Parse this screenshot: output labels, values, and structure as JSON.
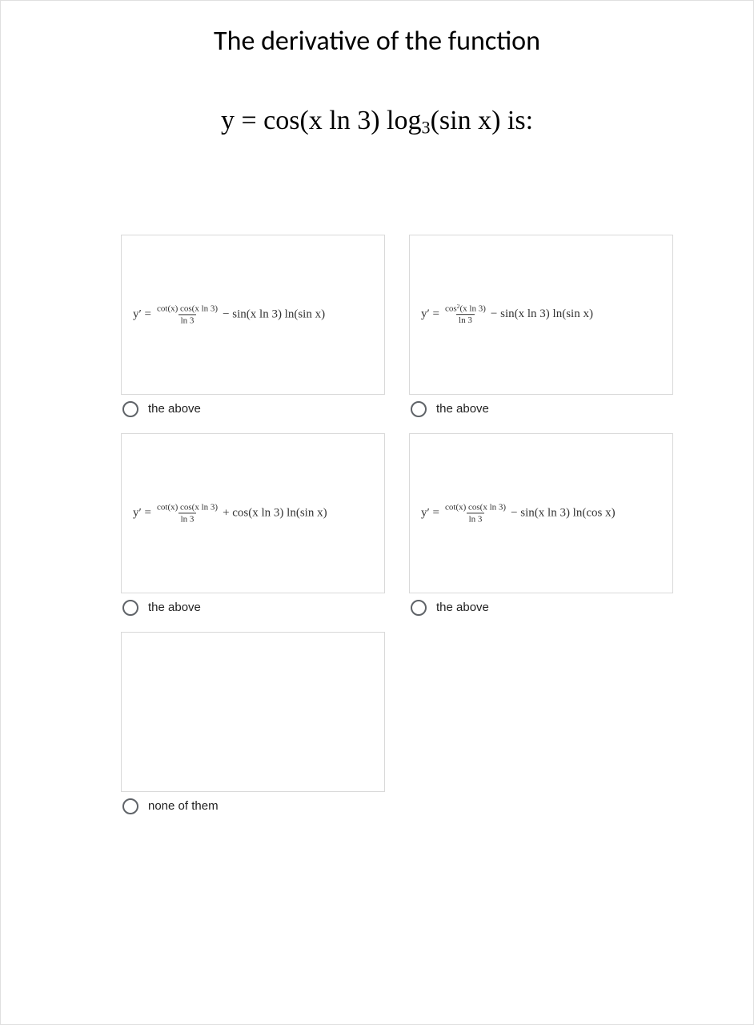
{
  "question": {
    "title": "The derivative of the function",
    "equation_parts": {
      "prefix": "y = cos(x ln 3) log",
      "sub": "3",
      "suffix": "(sin x)   is:"
    }
  },
  "options": [
    {
      "yprime": "y′ =",
      "frac_num": "cot(x) cos(x ln 3)",
      "frac_den": "ln 3",
      "trail": "− sin(x ln 3) ln(sin x)",
      "label": "the above"
    },
    {
      "yprime": "y′ =",
      "frac_num_parts": {
        "before": "cos",
        "sup": "2",
        "after": "(x ln 3)"
      },
      "frac_den": "ln 3",
      "trail": "− sin(x ln 3) ln(sin x)",
      "label": "the above"
    },
    {
      "yprime": "y′ =",
      "frac_num": "cot(x) cos(x ln 3)",
      "frac_den": "ln 3",
      "trail": "+ cos(x ln 3) ln(sin x)",
      "label": "the above"
    },
    {
      "yprime": "y′ =",
      "frac_num": "cot(x) cos(x ln 3)",
      "frac_den": "ln 3",
      "trail": "− sin(x ln 3) ln(cos x)",
      "label": "the above"
    }
  ],
  "option_none": {
    "label": "none of them"
  },
  "colors": {
    "border": "#d9d9d9",
    "radio_border": "#5f6368",
    "text": "#222222",
    "bg": "#ffffff"
  }
}
